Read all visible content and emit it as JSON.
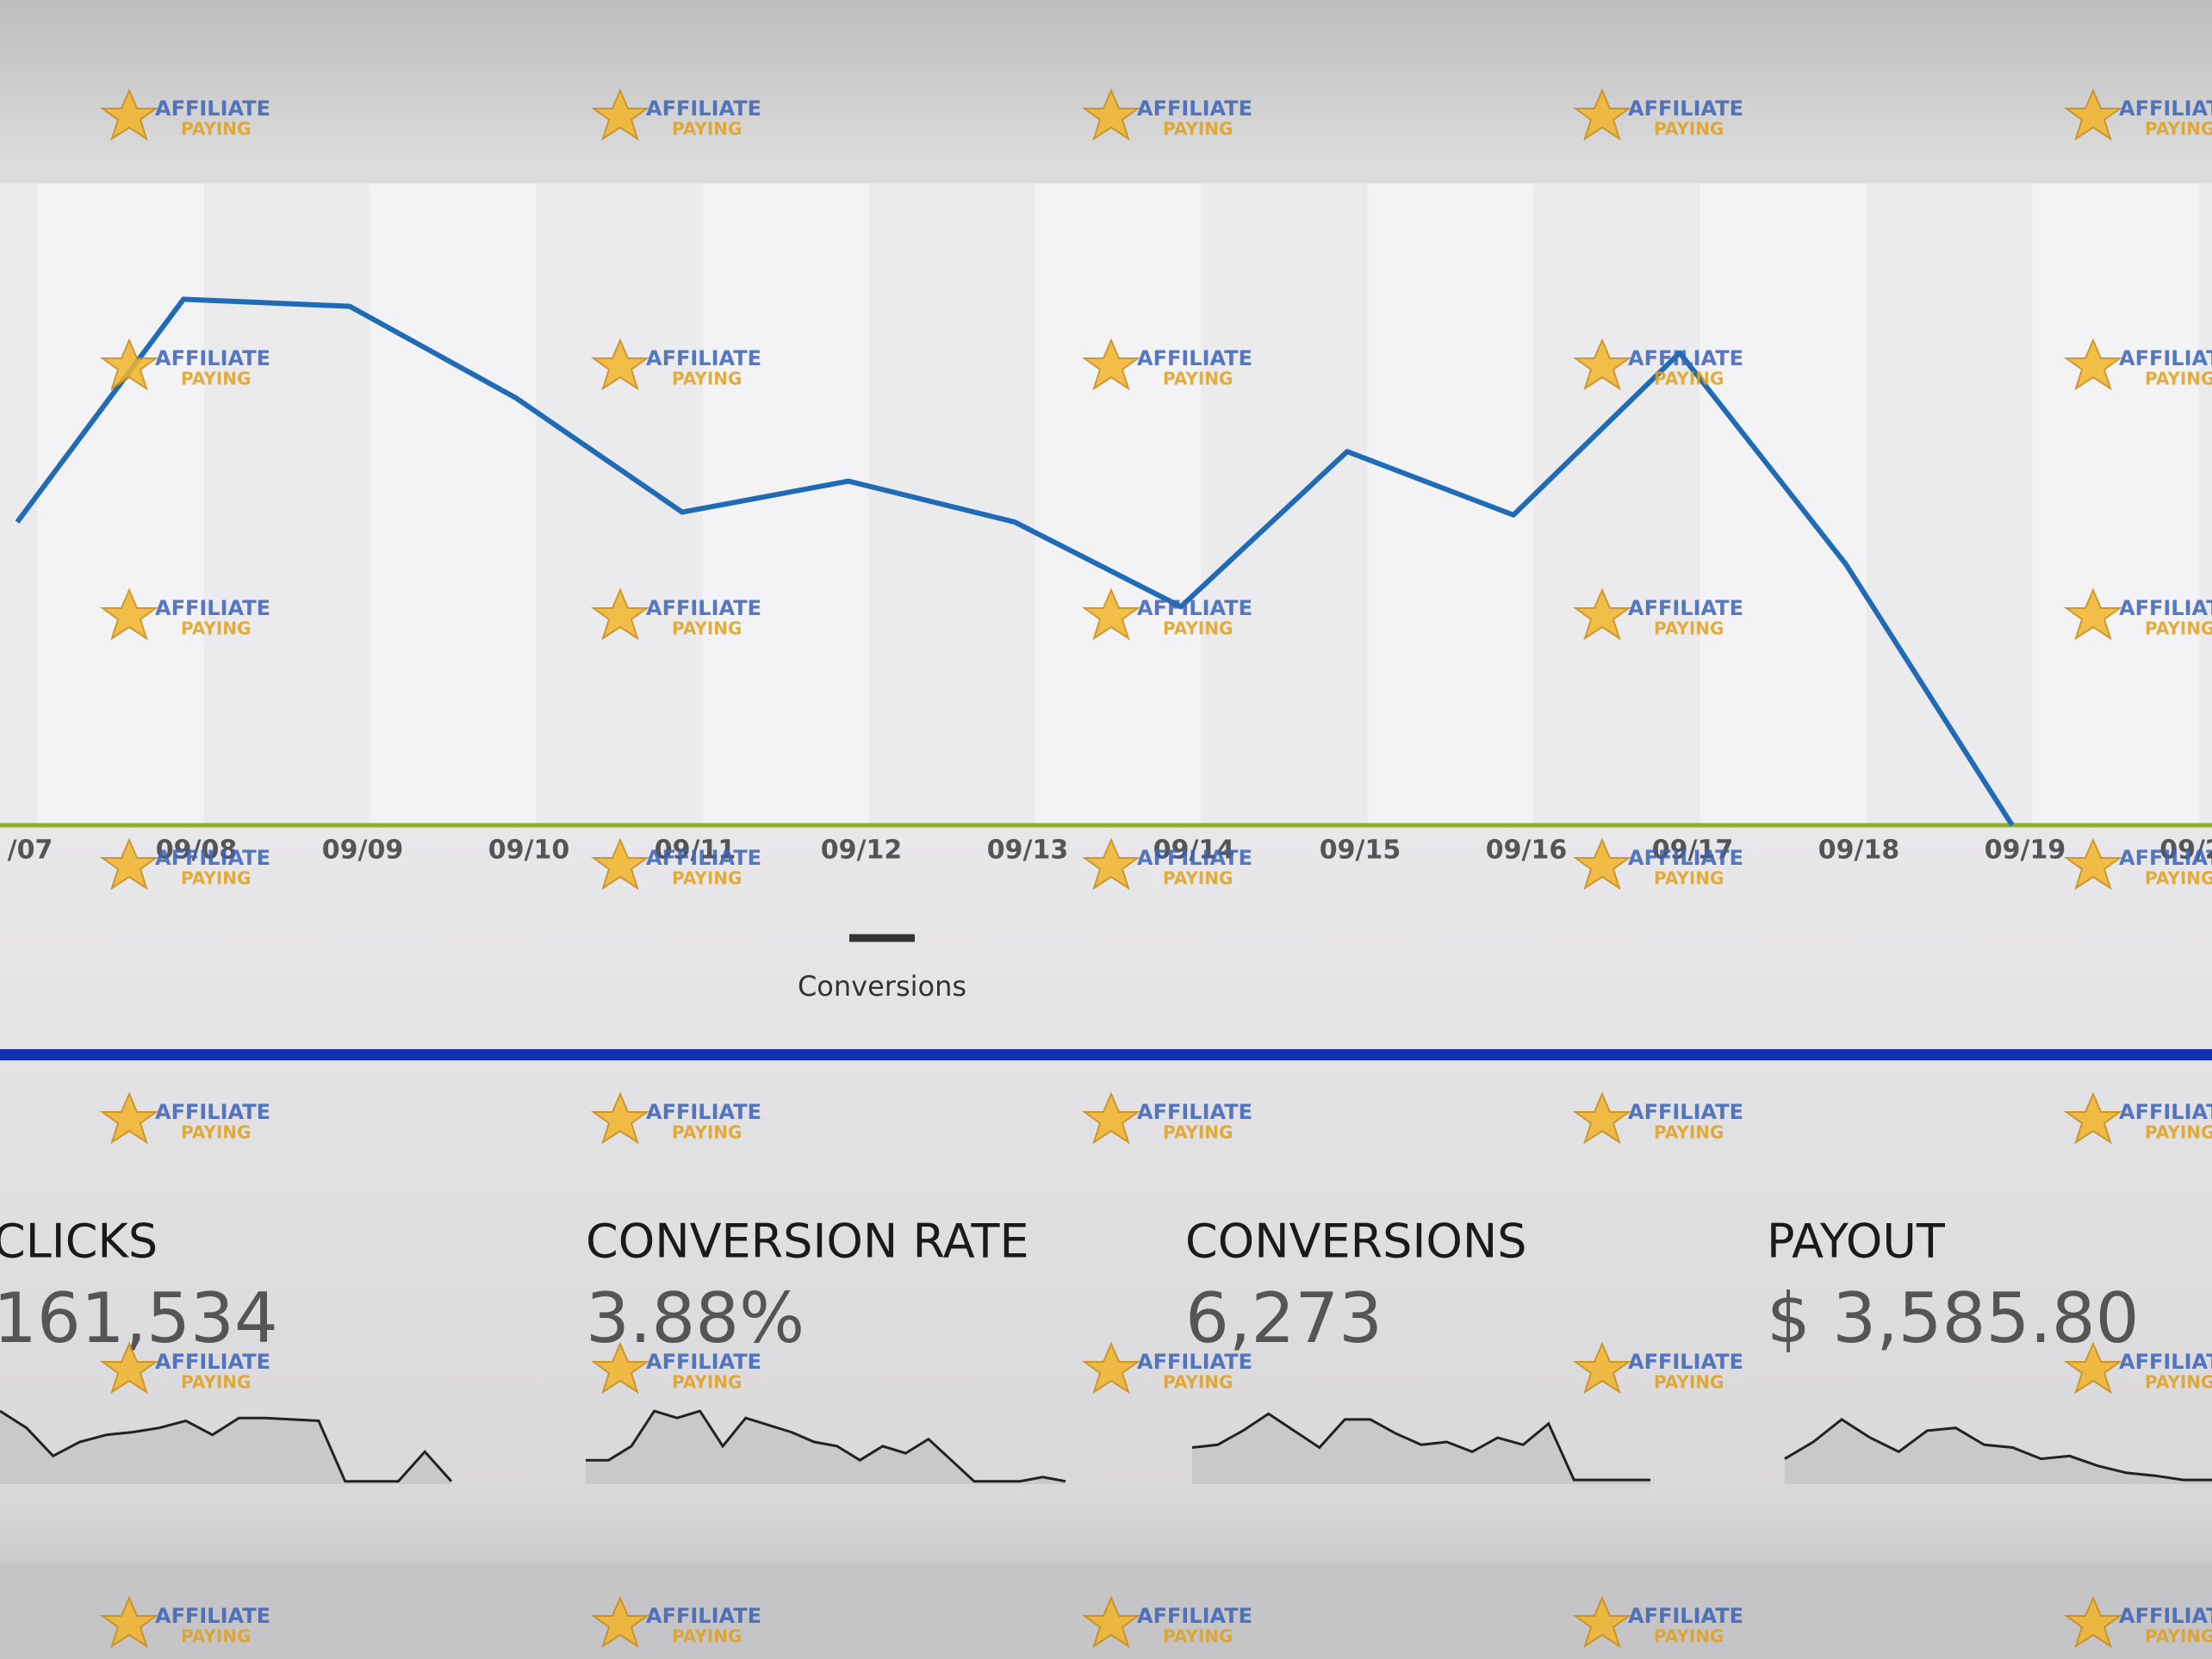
{
  "chart_data": [
    {
      "type": "line",
      "categories": [
        "/07",
        "09/08",
        "09/09",
        "09/10",
        "09/11",
        "09/12",
        "09/13",
        "09/14",
        "09/15",
        "09/16",
        "09/17",
        "09/18",
        "09/19",
        "09/2"
      ],
      "series": [
        {
          "name": "Conversions",
          "color": "#1f6bb5",
          "values": [
            215,
            373,
            368,
            303,
            222,
            244,
            215,
            155,
            265,
            220,
            335,
            185,
            0,
            null
          ]
        }
      ],
      "ylim": [
        0,
        460
      ],
      "legend": "bottom"
    },
    {
      "type": "sparkline",
      "title": "CLICKS",
      "total": "161,534",
      "color": "#222222",
      "values": [
        52,
        40,
        20,
        30,
        35,
        37,
        40,
        45,
        35,
        47,
        47,
        46,
        45,
        2,
        2,
        2,
        23,
        2
      ],
      "ylim": [
        0,
        60
      ]
    },
    {
      "type": "sparkline",
      "title": "CONVERSION RATE",
      "total": "3.88%",
      "color": "#222222",
      "values": [
        17,
        17,
        27,
        52,
        47,
        52,
        27,
        47,
        42,
        37,
        30,
        27,
        17,
        27,
        22,
        32,
        17,
        2,
        2,
        2,
        5,
        2
      ],
      "ylim": [
        0,
        60
      ]
    },
    {
      "type": "sparkline",
      "title": "CONVERSIONS",
      "total": "6,273",
      "color": "#222222",
      "values": [
        26,
        28,
        38,
        50,
        38,
        26,
        46,
        46,
        36,
        28,
        30,
        23,
        33,
        28,
        43,
        3,
        3,
        3,
        3
      ],
      "ylim": [
        0,
        60
      ]
    },
    {
      "type": "sparkline",
      "title": "PAYOUT",
      "total": "$ 3,585.80",
      "color": "#222222",
      "values": [
        18,
        30,
        46,
        33,
        23,
        38,
        40,
        28,
        26,
        18,
        20,
        13,
        8,
        6,
        3,
        3
      ],
      "ylim": [
        0,
        60
      ]
    }
  ],
  "watermark": [
    "AFFILIATE",
    "PAYING"
  ]
}
